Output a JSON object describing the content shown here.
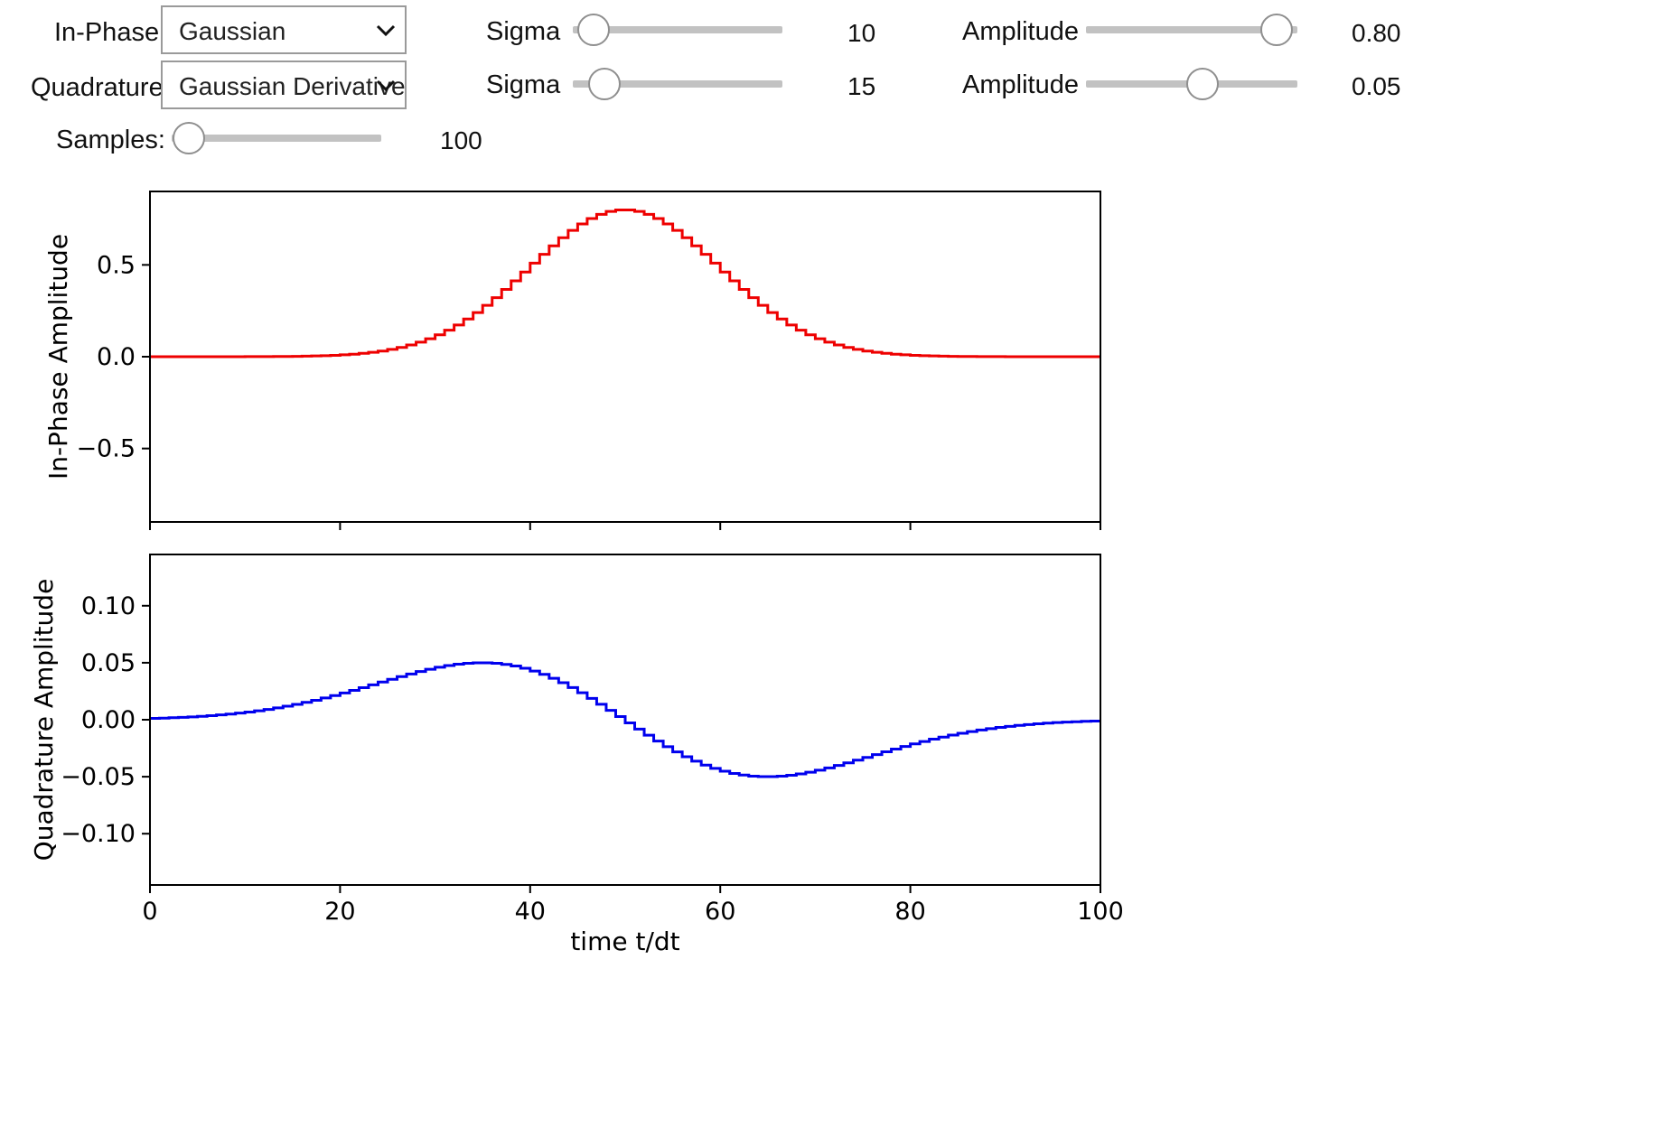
{
  "controls": {
    "inphase": {
      "label": "In-Phase:",
      "selected": "Gaussian",
      "sigma_label": "Sigma",
      "sigma_value": "10",
      "sigma_fraction": 0.1,
      "amplitude_label": "Amplitude",
      "amplitude_value": "0.80",
      "amplitude_fraction": 0.9
    },
    "quadrature": {
      "label": "Quadrature:",
      "selected": "Gaussian Derivative",
      "sigma_label": "Sigma",
      "sigma_value": "15",
      "sigma_fraction": 0.15,
      "amplitude_label": "Amplitude",
      "amplitude_value": "0.05",
      "amplitude_fraction": 0.55
    },
    "samples": {
      "label": "Samples:",
      "value": "100",
      "fraction": 0.08
    }
  },
  "icons": {
    "dropdown": "chevron-down-icon"
  },
  "colors": {
    "inphase_series": "#ee0000",
    "quadrature_series": "#0000ee",
    "track": "#c2c2c2"
  },
  "chart_data": [
    {
      "type": "line",
      "step": true,
      "xlabel": "",
      "ylabel": "In-Phase Amplitude",
      "xlim": [
        0,
        100
      ],
      "ylim": [
        -0.9,
        0.9
      ],
      "yticks": [
        {
          "value": 0.5,
          "label": "0.5"
        },
        {
          "value": 0.0,
          "label": "0.0"
        },
        {
          "value": -0.5,
          "label": "−0.5"
        }
      ],
      "xticks": [
        0,
        20,
        40,
        60,
        80,
        100
      ],
      "show_xtick_labels": false,
      "series": [
        {
          "color": "#ee0000",
          "function": "gaussian",
          "amplitude": 0.8,
          "sigma": 10,
          "center": 50,
          "samples": 100
        }
      ]
    },
    {
      "type": "line",
      "step": true,
      "xlabel": "time t/dt",
      "ylabel": "Quadrature Amplitude",
      "xlim": [
        0,
        100
      ],
      "ylim": [
        -0.145,
        0.145
      ],
      "yticks": [
        {
          "value": 0.1,
          "label": "0.10"
        },
        {
          "value": 0.05,
          "label": "0.05"
        },
        {
          "value": 0.0,
          "label": "0.00"
        },
        {
          "value": -0.05,
          "label": "−0.05"
        },
        {
          "value": -0.1,
          "label": "−0.10"
        }
      ],
      "xticks": [
        0,
        20,
        40,
        60,
        80,
        100
      ],
      "xtick_labels": [
        "0",
        "20",
        "40",
        "60",
        "80",
        "100"
      ],
      "show_xtick_labels": true,
      "series": [
        {
          "color": "#0000ee",
          "function": "gaussian_derivative",
          "amplitude": 0.05,
          "sigma": 15,
          "center": 50,
          "samples": 100
        }
      ]
    }
  ]
}
